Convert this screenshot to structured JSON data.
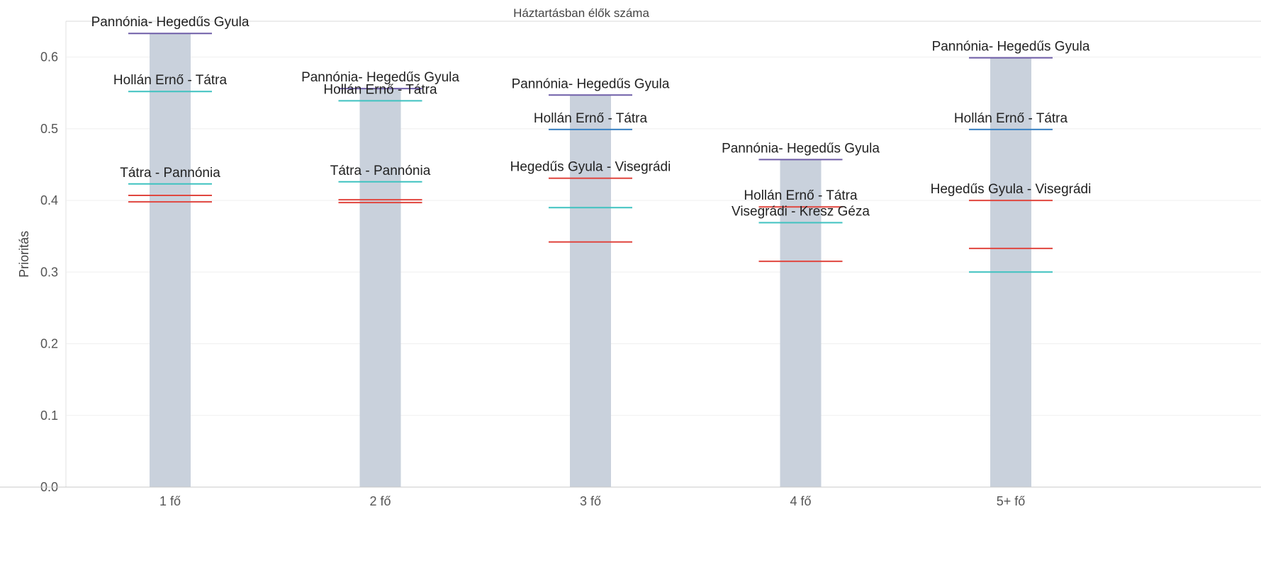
{
  "chart_data": {
    "type": "bar",
    "title": "Háztartásban élők száma",
    "ylabel": "Prioritás",
    "xlabel": "",
    "ylim": [
      0,
      0.65
    ],
    "yticks": [
      "0.0",
      "0.1",
      "0.2",
      "0.3",
      "0.4",
      "0.5",
      "0.6"
    ],
    "ytick_values": [
      0,
      0.1,
      0.2,
      0.3,
      0.4,
      0.5,
      0.6
    ],
    "grid": true,
    "categories": [
      "1 fő",
      "2 fő",
      "3 fő",
      "4 fő",
      "5+ fő"
    ],
    "bar_values": [
      0.633,
      0.556,
      0.547,
      0.457,
      0.599
    ],
    "colors": {
      "bar": "#c9d1dc",
      "purple": "#6f5ea8",
      "blue": "#3b83c4",
      "teal": "#3fc2c0",
      "red": "#e0463f"
    },
    "markers": [
      [
        {
          "value": 0.633,
          "color": "purple",
          "label": "Pannónia- Hegedűs Gyula"
        },
        {
          "value": 0.552,
          "color": "teal",
          "label": "Hollán Ernő - Tátra"
        },
        {
          "value": 0.423,
          "color": "teal",
          "label": "Tátra - Pannónia"
        },
        {
          "value": 0.407,
          "color": "red",
          "label": ""
        },
        {
          "value": 0.398,
          "color": "red",
          "label": ""
        }
      ],
      [
        {
          "value": 0.556,
          "color": "purple",
          "label": "Pannónia- Hegedűs Gyula"
        },
        {
          "value": 0.539,
          "color": "teal",
          "label": "Hollán Ernő - Tátra"
        },
        {
          "value": 0.426,
          "color": "teal",
          "label": "Tátra - Pannónia"
        },
        {
          "value": 0.401,
          "color": "red",
          "label": ""
        },
        {
          "value": 0.397,
          "color": "red",
          "label": ""
        }
      ],
      [
        {
          "value": 0.547,
          "color": "purple",
          "label": "Pannónia- Hegedűs Gyula"
        },
        {
          "value": 0.499,
          "color": "blue",
          "label": "Hollán Ernő - Tátra"
        },
        {
          "value": 0.431,
          "color": "red",
          "label": "Hegedűs Gyula - Visegrádi"
        },
        {
          "value": 0.39,
          "color": "teal",
          "label": ""
        },
        {
          "value": 0.342,
          "color": "red",
          "label": ""
        }
      ],
      [
        {
          "value": 0.457,
          "color": "purple",
          "label": "Pannónia- Hegedűs Gyula"
        },
        {
          "value": 0.391,
          "color": "red",
          "label": "Hollán Ernő - Tátra"
        },
        {
          "value": 0.369,
          "color": "teal",
          "label": "Visegrádi - Kresz Géza"
        },
        {
          "value": 0.315,
          "color": "red",
          "label": ""
        }
      ],
      [
        {
          "value": 0.599,
          "color": "purple",
          "label": "Pannónia- Hegedűs Gyula"
        },
        {
          "value": 0.499,
          "color": "blue",
          "label": "Hollán Ernő - Tátra"
        },
        {
          "value": 0.4,
          "color": "red",
          "label": "Hegedűs Gyula - Visegrádi"
        },
        {
          "value": 0.333,
          "color": "red",
          "label": ""
        },
        {
          "value": 0.3,
          "color": "teal",
          "label": ""
        }
      ]
    ]
  }
}
